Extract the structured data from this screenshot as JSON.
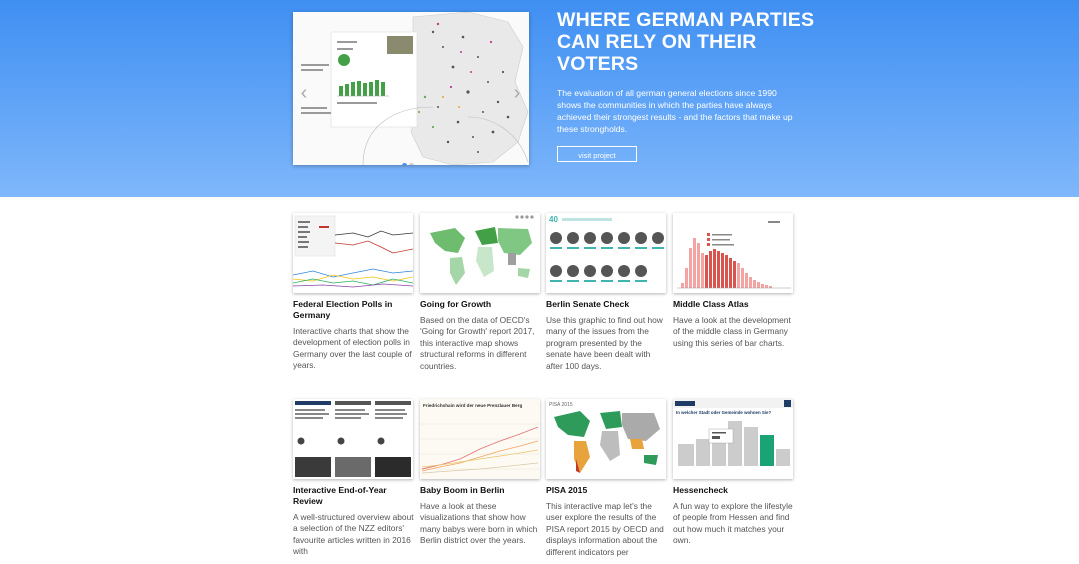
{
  "hero": {
    "title": "WHERE GERMAN PARTIES CAN RELY ON THEIR VOTERS",
    "description": "The evaluation of all german general elections since 1990 shows the communities in which the parties have always achieved their strongest results - and the factors that make up these strongholds.",
    "button_label": "visit project",
    "slider": {
      "prev_icon": "chevron-left-icon",
      "next_icon": "chevron-right-icon",
      "slide_count": 2,
      "active_slide": 1
    }
  },
  "projects": [
    {
      "title": "Federal Election Polls in Germany",
      "description": "Interactive charts that show the development of election polls in Germany over the last couple of years."
    },
    {
      "title": "Going for Growth",
      "description": "Based on the data of OECD's 'Going for Growth' report 2017, this interactive map shows structural reforms in different countries."
    },
    {
      "title": "Berlin Senate Check",
      "description": "Use this graphic to find out how many of the issues from the program presented by the senate have been dealt with after 100 days."
    },
    {
      "title": "Middle Class Atlas",
      "description": "Have a look at the development of the middle class in Germany using this series of bar charts."
    },
    {
      "title": "Interactive End-of-Year Review",
      "description": "A well-structured overview about a selection of the NZZ editors' favourite articles written in 2016 with"
    },
    {
      "title": "Baby Boom in Berlin",
      "description": "Have a look at these visualizations that show how many babys were born in which Berlin district over the years."
    },
    {
      "title": "PISA 2015",
      "description": "This interactive map let's the user explore the results of the PISA report 2015 by OECD and displays information about the different indicators per"
    },
    {
      "title": "Hessencheck",
      "description": "A fun way to explore the lifestyle of people from Hessen and find out how much it matches your own."
    }
  ],
  "thumb_text": {
    "senate_count": "40",
    "baby_heading": "Friedrichshain wird der neue Prenzlauer Berg",
    "pisa_label": "PISA 2015",
    "hessen_question": "In welcher Stadt oder Gemeinde wohnen Sie?"
  }
}
